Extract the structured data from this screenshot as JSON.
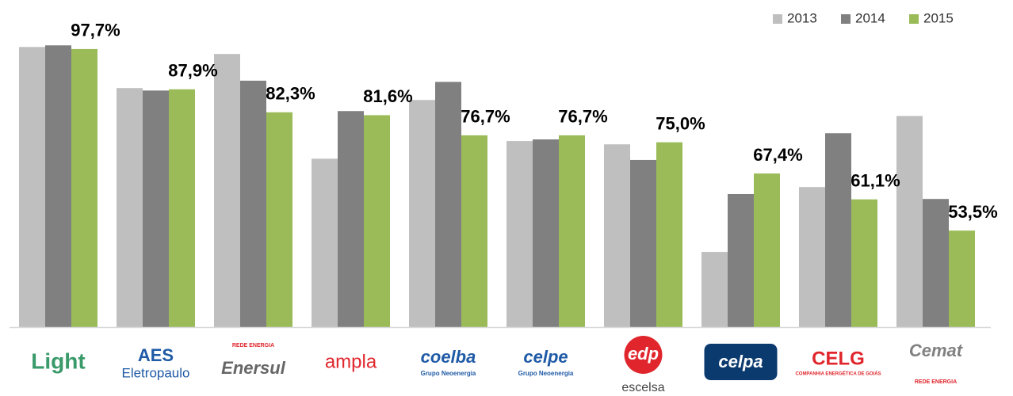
{
  "chart_data": {
    "type": "bar",
    "categories": [
      "Light",
      "AES",
      "Enersul",
      "ampla",
      "coelba",
      "celpe",
      "edp",
      "celpa",
      "CELG",
      "Cemat"
    ],
    "category_sublabels": [
      null,
      "Eletropaulo",
      "REDE ENERGIA",
      null,
      "Grupo Neoenergia",
      "Grupo Neoenergia",
      "escelsa",
      null,
      "COMPANHIA ENERGÉTICA DE GOIÁS",
      "REDE ENERGIA"
    ],
    "series": [
      {
        "name": "2013",
        "color": "#bfbfbf",
        "values": [
          98.2,
          88.2,
          96.5,
          71.0,
          85.3,
          75.3,
          74.5,
          48.3,
          64.1,
          81.4
        ]
      },
      {
        "name": "2014",
        "color": "#808080",
        "values": [
          98.6,
          87.6,
          90.0,
          82.6,
          89.7,
          75.7,
          70.7,
          62.4,
          77.2,
          61.2
        ]
      },
      {
        "name": "2015",
        "color": "#9bbb59",
        "values": [
          97.7,
          87.9,
          82.3,
          81.6,
          76.7,
          76.7,
          75.0,
          67.4,
          61.1,
          53.5
        ],
        "value_labels": [
          "97,7%",
          "87,9%",
          "82,3%",
          "81,6%",
          "76,7%",
          "76,7%",
          "75,0%",
          "67,4%",
          "61,1%",
          "53,5%"
        ]
      }
    ],
    "ylim": [
      30,
      100
    ],
    "legend": "top-right"
  }
}
